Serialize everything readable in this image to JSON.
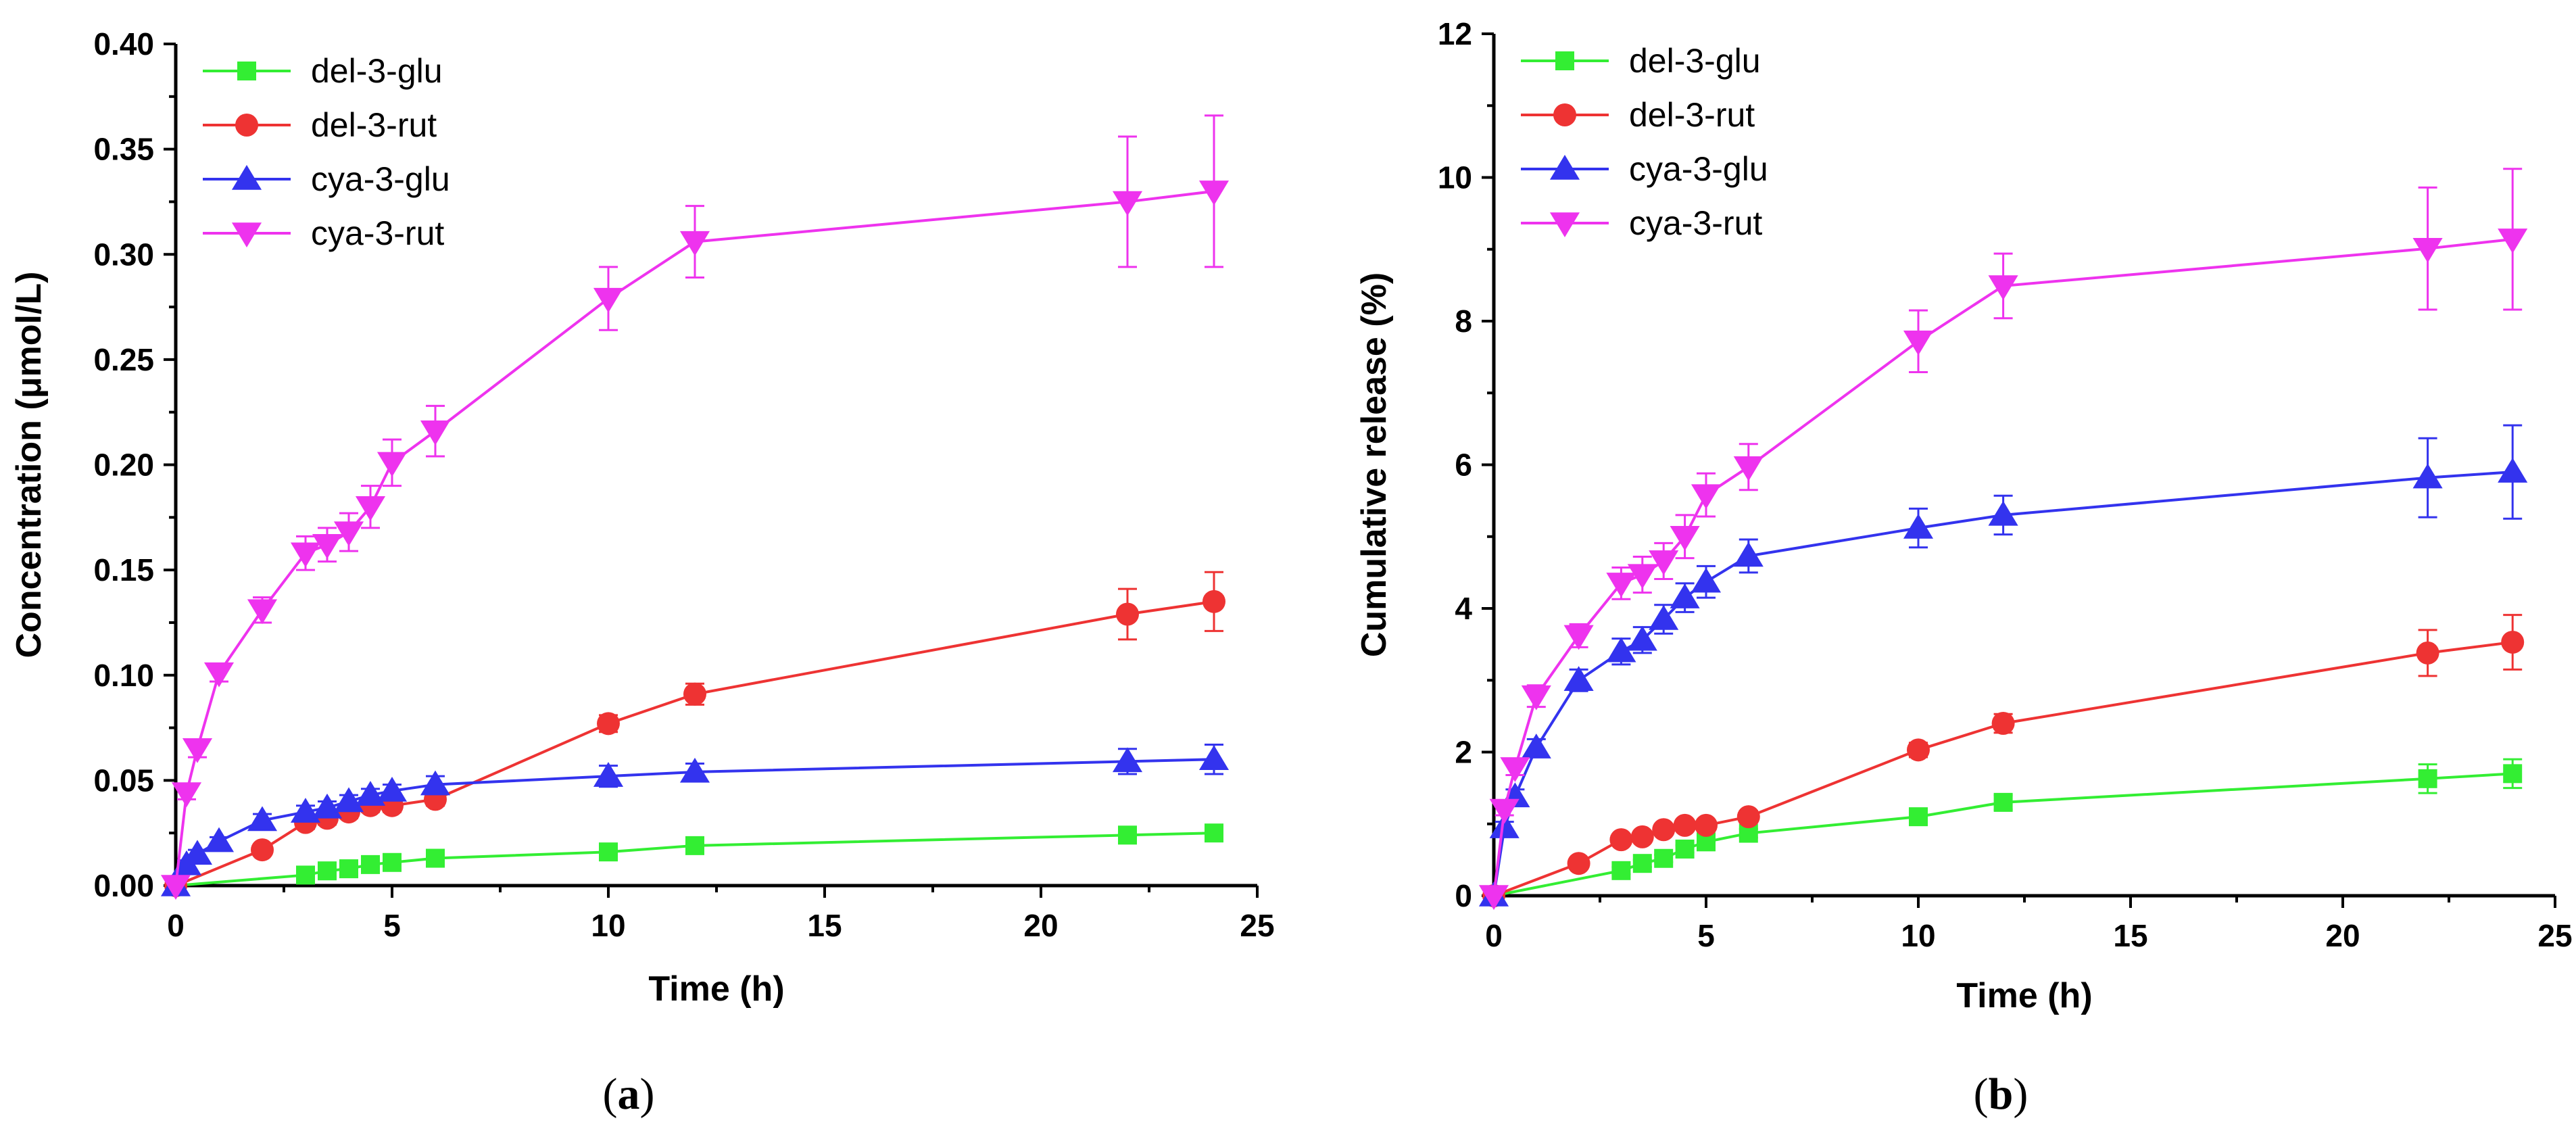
{
  "figure": {
    "panels": [
      "a",
      "b"
    ]
  },
  "colors": {
    "del-3-glu": "#33ee33",
    "del-3-rut": "#ee3333",
    "cya-3-glu": "#3333ee",
    "cya-3-rut": "#ee33ee",
    "axis": "#000000"
  },
  "chart_data": [
    {
      "id": "a",
      "panel_label": "a",
      "type": "line",
      "title": "",
      "xlabel": "Time (h)",
      "ylabel": "Concentration (μmol/L)",
      "xlim": [
        0,
        25
      ],
      "ylim": [
        0,
        0.4
      ],
      "xticks": [
        0,
        5,
        10,
        15,
        20,
        25
      ],
      "xtick_labels": [
        "0",
        "5",
        "10",
        "15",
        "20",
        "25"
      ],
      "yticks": [
        0,
        0.05,
        0.1,
        0.15,
        0.2,
        0.25,
        0.3,
        0.35,
        0.4
      ],
      "ytick_labels": [
        "0.00",
        "0.05",
        "0.10",
        "0.15",
        "0.20",
        "0.25",
        "0.30",
        "0.35",
        "0.40"
      ],
      "legend_position": "top-left",
      "series": [
        {
          "name": "del-3-glu",
          "marker": "square",
          "x": [
            0,
            3,
            3.5,
            4,
            4.5,
            5,
            6,
            10,
            12,
            22,
            24
          ],
          "y": [
            0,
            0.005,
            0.007,
            0.008,
            0.01,
            0.011,
            0.013,
            0.016,
            0.019,
            0.024,
            0.025
          ],
          "err": [
            0,
            0.001,
            0.001,
            0.001,
            0.001,
            0.001,
            0.001,
            0.002,
            0.002,
            0.003,
            0.003
          ]
        },
        {
          "name": "del-3-rut",
          "marker": "circle",
          "x": [
            0,
            2,
            3,
            3.5,
            4,
            4.5,
            5,
            6,
            10,
            12,
            22,
            24
          ],
          "y": [
            0,
            0.017,
            0.03,
            0.032,
            0.035,
            0.038,
            0.038,
            0.041,
            0.077,
            0.091,
            0.129,
            0.135
          ],
          "err": [
            0,
            0.002,
            0.003,
            0.003,
            0.003,
            0.003,
            0.003,
            0.003,
            0.004,
            0.005,
            0.012,
            0.014
          ]
        },
        {
          "name": "cya-3-glu",
          "marker": "triangle-up",
          "x": [
            0,
            0.25,
            0.5,
            1,
            2,
            3,
            3.5,
            4,
            4.5,
            5,
            6,
            10,
            12,
            22,
            24
          ],
          "y": [
            0,
            0.01,
            0.015,
            0.021,
            0.031,
            0.035,
            0.037,
            0.04,
            0.043,
            0.045,
            0.048,
            0.052,
            0.054,
            0.059,
            0.06
          ],
          "err": [
            0,
            0.002,
            0.002,
            0.002,
            0.003,
            0.003,
            0.003,
            0.003,
            0.003,
            0.003,
            0.004,
            0.005,
            0.004,
            0.006,
            0.007
          ]
        },
        {
          "name": "cya-3-rut",
          "marker": "triangle-down",
          "x": [
            0,
            0.25,
            0.5,
            1,
            2,
            3,
            3.5,
            4,
            4.5,
            5,
            6,
            10,
            12,
            22,
            24
          ],
          "y": [
            0,
            0.044,
            0.065,
            0.101,
            0.131,
            0.158,
            0.162,
            0.168,
            0.18,
            0.201,
            0.216,
            0.279,
            0.306,
            0.325,
            0.33
          ],
          "err": [
            0,
            0.003,
            0.004,
            0.004,
            0.006,
            0.008,
            0.008,
            0.009,
            0.01,
            0.011,
            0.012,
            0.015,
            0.017,
            0.031,
            0.036
          ]
        }
      ]
    },
    {
      "id": "b",
      "panel_label": "b",
      "type": "line",
      "title": "",
      "xlabel": "Time (h)",
      "ylabel": "Cumulative release (%)",
      "xlim": [
        0,
        25
      ],
      "ylim": [
        0,
        12
      ],
      "xticks": [
        0,
        5,
        10,
        15,
        20,
        25
      ],
      "xtick_labels": [
        "0",
        "5",
        "10",
        "15",
        "20",
        "25"
      ],
      "yticks": [
        0,
        2,
        4,
        6,
        8,
        10,
        12
      ],
      "ytick_labels": [
        "0",
        "2",
        "4",
        "6",
        "8",
        "10",
        "12"
      ],
      "legend_position": "top-left",
      "series": [
        {
          "name": "del-3-glu",
          "marker": "square",
          "x": [
            0,
            3,
            3.5,
            4,
            4.5,
            5,
            6,
            10,
            12,
            22,
            24
          ],
          "y": [
            0,
            0.35,
            0.45,
            0.52,
            0.65,
            0.75,
            0.87,
            1.1,
            1.3,
            1.63,
            1.7
          ],
          "err": [
            0,
            0.05,
            0.05,
            0.05,
            0.05,
            0.05,
            0.06,
            0.08,
            0.1,
            0.2,
            0.2
          ]
        },
        {
          "name": "del-3-rut",
          "marker": "circle",
          "x": [
            0,
            2,
            3,
            3.5,
            4,
            4.5,
            5,
            6,
            10,
            12,
            22,
            24
          ],
          "y": [
            0,
            0.45,
            0.78,
            0.82,
            0.92,
            0.98,
            0.98,
            1.1,
            2.03,
            2.4,
            3.38,
            3.53
          ],
          "err": [
            0,
            0.05,
            0.06,
            0.06,
            0.07,
            0.07,
            0.07,
            0.08,
            0.1,
            0.13,
            0.32,
            0.38
          ]
        },
        {
          "name": "cya-3-glu",
          "marker": "triangle-up",
          "x": [
            0,
            0.25,
            0.5,
            1,
            2,
            3,
            3.5,
            4,
            4.5,
            5,
            6,
            10,
            12,
            22,
            24
          ],
          "y": [
            0,
            0.95,
            1.38,
            2.06,
            3.0,
            3.4,
            3.56,
            3.85,
            4.15,
            4.37,
            4.73,
            5.12,
            5.3,
            5.82,
            5.9
          ],
          "err": [
            0,
            0.08,
            0.1,
            0.12,
            0.15,
            0.18,
            0.18,
            0.2,
            0.2,
            0.22,
            0.23,
            0.27,
            0.27,
            0.55,
            0.65
          ]
        },
        {
          "name": "cya-3-rut",
          "marker": "triangle-down",
          "x": [
            0,
            0.25,
            0.5,
            1,
            2,
            3,
            3.5,
            4,
            4.5,
            5,
            6,
            10,
            12,
            22,
            24
          ],
          "y": [
            0,
            1.2,
            1.78,
            2.78,
            3.62,
            4.35,
            4.47,
            4.66,
            5.0,
            5.58,
            5.97,
            7.72,
            8.49,
            9.01,
            9.14
          ],
          "err": [
            0,
            0.08,
            0.1,
            0.15,
            0.16,
            0.22,
            0.25,
            0.25,
            0.3,
            0.3,
            0.32,
            0.43,
            0.45,
            0.85,
            0.98
          ]
        }
      ]
    }
  ]
}
